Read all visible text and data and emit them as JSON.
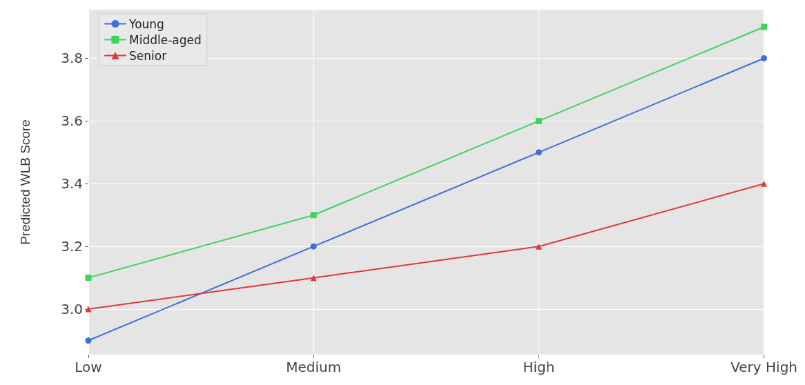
{
  "chart_data": {
    "type": "line",
    "ylabel": "Predicted WLB Score",
    "categories": [
      "Low",
      "Medium",
      "High",
      "Very High"
    ],
    "series": [
      {
        "name": "Young",
        "color": "#3b6fd9",
        "marker": "circle",
        "values": [
          2.9,
          3.2,
          3.5,
          3.8
        ]
      },
      {
        "name": "Middle-aged",
        "color": "#3fd35b",
        "marker": "square",
        "values": [
          3.1,
          3.3,
          3.6,
          3.9
        ]
      },
      {
        "name": "Senior",
        "color": "#e03838",
        "marker": "triangle",
        "values": [
          3.0,
          3.1,
          3.2,
          3.4
        ]
      }
    ],
    "ylim": [
      2.855,
      3.955
    ],
    "yticks": [
      {
        "value": 3.0,
        "label": "3.0"
      },
      3.2,
      3.4,
      3.6,
      3.8
    ],
    "grid": true,
    "legend": "top left",
    "line_style": "solid"
  }
}
